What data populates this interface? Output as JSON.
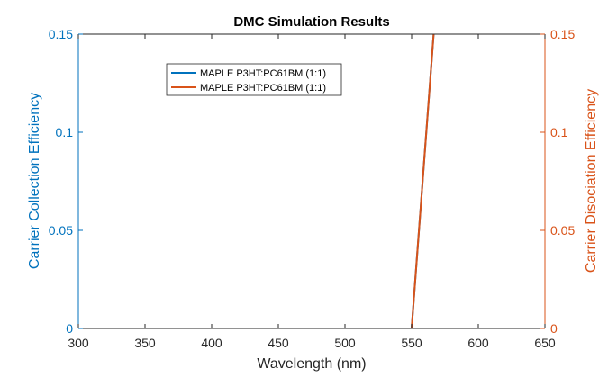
{
  "chart_data": {
    "type": "line",
    "title": "DMC Simulation Results",
    "xlabel": "Wavelength (nm)",
    "ylabel_left": "Carrier Collection Efficiency",
    "ylabel_right": "Carrier Disociation Efficiency",
    "xlim": [
      300,
      650
    ],
    "ylim_left": [
      0,
      0.15
    ],
    "ylim_right": [
      0,
      0.15
    ],
    "x_ticks": [
      "300",
      "350",
      "400",
      "450",
      "500",
      "550",
      "600",
      "650"
    ],
    "y_ticks_left": [
      "0",
      "0.05",
      "0.1",
      "0.15"
    ],
    "y_ticks_right": [
      "0",
      "0.05",
      "0.1",
      "0.15"
    ],
    "grid": false,
    "legend_position": "top-left",
    "colors": {
      "left_axis": "#0072BD",
      "right_axis": "#D95319",
      "axis_black": "#262626"
    },
    "series": [
      {
        "name": "MAPLE P3HT:PC61BM (1:1)",
        "axis": "left",
        "color": "#0072BD",
        "x": [
          550,
          566.5
        ],
        "y": [
          0,
          0.15
        ]
      },
      {
        "name": "MAPLE P3HT:PC61BM (1:1)",
        "axis": "right",
        "color": "#D95319",
        "x": [
          550,
          566.5
        ],
        "y": [
          0,
          0.15
        ]
      }
    ]
  }
}
